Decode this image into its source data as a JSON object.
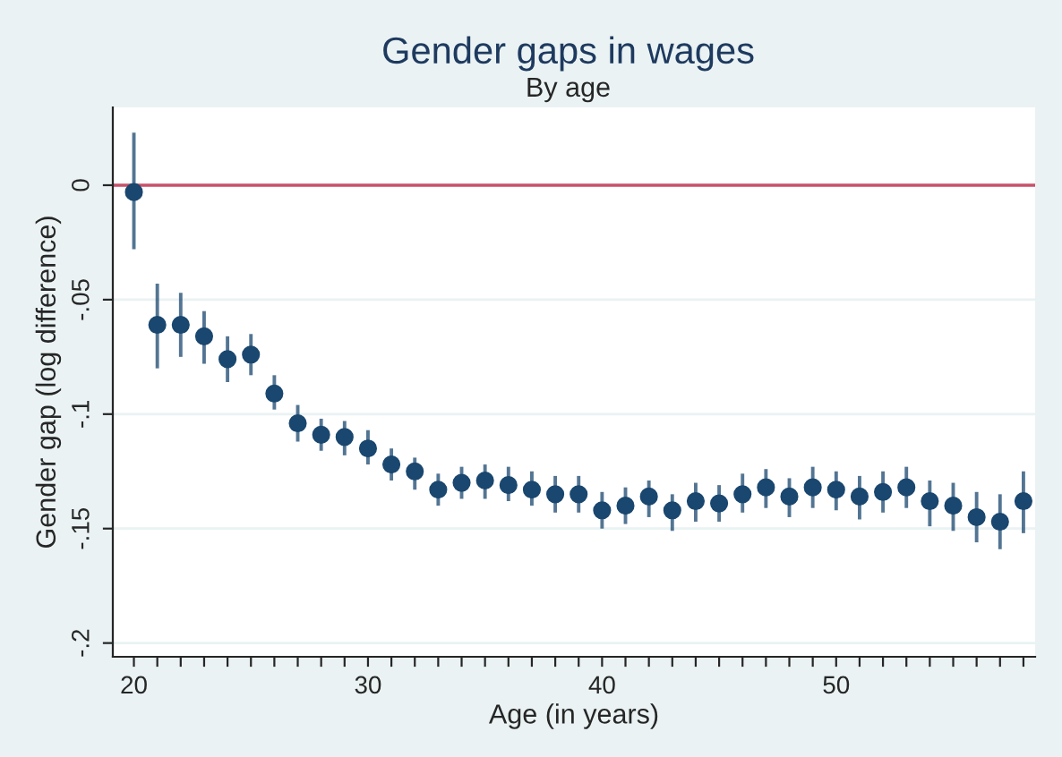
{
  "chart_data": {
    "type": "scatter",
    "title": "Gender gaps in wages",
    "subtitle": "By age",
    "xlabel": "Age (in years)",
    "ylabel": "Gender gap (log difference)",
    "x": [
      20,
      21,
      22,
      23,
      24,
      25,
      26,
      27,
      28,
      29,
      30,
      31,
      32,
      33,
      34,
      35,
      36,
      37,
      38,
      39,
      40,
      41,
      42,
      43,
      44,
      45,
      46,
      47,
      48,
      49,
      50,
      51,
      52,
      53,
      54,
      55,
      56,
      57,
      58
    ],
    "series": [
      {
        "color": "#1a476f",
        "values": [
          -0.003,
          -0.061,
          -0.061,
          -0.066,
          -0.076,
          -0.074,
          -0.091,
          -0.104,
          -0.109,
          -0.11,
          -0.115,
          -0.122,
          -0.125,
          -0.133,
          -0.13,
          -0.129,
          -0.131,
          -0.133,
          -0.135,
          -0.135,
          -0.142,
          -0.14,
          -0.136,
          -0.142,
          -0.138,
          -0.139,
          -0.135,
          -0.132,
          -0.136,
          -0.132,
          -0.133,
          -0.136,
          -0.134,
          -0.132,
          -0.138,
          -0.14,
          -0.145,
          -0.147,
          -0.138
        ],
        "errors": [
          [
            -0.028,
            0.023
          ],
          [
            -0.08,
            -0.043
          ],
          [
            -0.075,
            -0.047
          ],
          [
            -0.078,
            -0.055
          ],
          [
            -0.086,
            -0.066
          ],
          [
            -0.083,
            -0.065
          ],
          [
            -0.098,
            -0.083
          ],
          [
            -0.112,
            -0.096
          ],
          [
            -0.116,
            -0.102
          ],
          [
            -0.118,
            -0.103
          ],
          [
            -0.122,
            -0.107
          ],
          [
            -0.129,
            -0.115
          ],
          [
            -0.133,
            -0.119
          ],
          [
            -0.14,
            -0.126
          ],
          [
            -0.137,
            -0.123
          ],
          [
            -0.137,
            -0.122
          ],
          [
            -0.138,
            -0.123
          ],
          [
            -0.14,
            -0.125
          ],
          [
            -0.143,
            -0.127
          ],
          [
            -0.143,
            -0.127
          ],
          [
            -0.15,
            -0.134
          ],
          [
            -0.148,
            -0.132
          ],
          [
            -0.145,
            -0.129
          ],
          [
            -0.151,
            -0.135
          ],
          [
            -0.147,
            -0.13
          ],
          [
            -0.147,
            -0.131
          ],
          [
            -0.143,
            -0.126
          ],
          [
            -0.141,
            -0.124
          ],
          [
            -0.145,
            -0.128
          ],
          [
            -0.141,
            -0.123
          ],
          [
            -0.142,
            -0.125
          ],
          [
            -0.146,
            -0.127
          ],
          [
            -0.143,
            -0.125
          ],
          [
            -0.141,
            -0.123
          ],
          [
            -0.149,
            -0.129
          ],
          [
            -0.151,
            -0.13
          ],
          [
            -0.156,
            -0.134
          ],
          [
            -0.159,
            -0.135
          ],
          [
            -0.152,
            -0.125
          ]
        ]
      }
    ],
    "marker": "circle",
    "xlim": [
      19.1,
      58.5
    ],
    "xticks": [
      20,
      {
        "value": 21,
        "label": null
      },
      {
        "value": 22,
        "label": null
      },
      {
        "value": 23,
        "label": null
      },
      {
        "value": 24,
        "label": null
      },
      {
        "value": 25,
        "label": null
      },
      {
        "value": 26,
        "label": null
      },
      {
        "value": 27,
        "label": null
      },
      {
        "value": 28,
        "label": null
      },
      {
        "value": 29,
        "label": null
      },
      30,
      {
        "value": 31,
        "label": null
      },
      {
        "value": 32,
        "label": null
      },
      {
        "value": 33,
        "label": null
      },
      {
        "value": 34,
        "label": null
      },
      {
        "value": 35,
        "label": null
      },
      {
        "value": 36,
        "label": null
      },
      {
        "value": 37,
        "label": null
      },
      {
        "value": 38,
        "label": null
      },
      {
        "value": 39,
        "label": null
      },
      40,
      {
        "value": 41,
        "label": null
      },
      {
        "value": 42,
        "label": null
      },
      {
        "value": 43,
        "label": null
      },
      {
        "value": 44,
        "label": null
      },
      {
        "value": 45,
        "label": null
      },
      {
        "value": 46,
        "label": null
      },
      {
        "value": 47,
        "label": null
      },
      {
        "value": 48,
        "label": null
      },
      {
        "value": 49,
        "label": null
      },
      50,
      {
        "value": 51,
        "label": null
      },
      {
        "value": 52,
        "label": null
      },
      {
        "value": 53,
        "label": null
      },
      {
        "value": 54,
        "label": null
      },
      {
        "value": 55,
        "label": null
      },
      {
        "value": 56,
        "label": null
      },
      {
        "value": 57,
        "label": null
      },
      {
        "value": 58,
        "label": null
      }
    ],
    "ylim": [
      -0.206,
      0.034
    ],
    "yticks": [
      {
        "value": -0.2,
        "label": "-.2"
      },
      {
        "value": -0.15,
        "label": "-.15"
      },
      {
        "value": -0.1,
        "label": "-.1"
      },
      {
        "value": -0.05,
        "label": "-.05"
      },
      0
    ],
    "ref_lines": [
      {
        "axis": "y",
        "value": 0,
        "color": "#c8516a"
      }
    ],
    "grid": "y"
  }
}
